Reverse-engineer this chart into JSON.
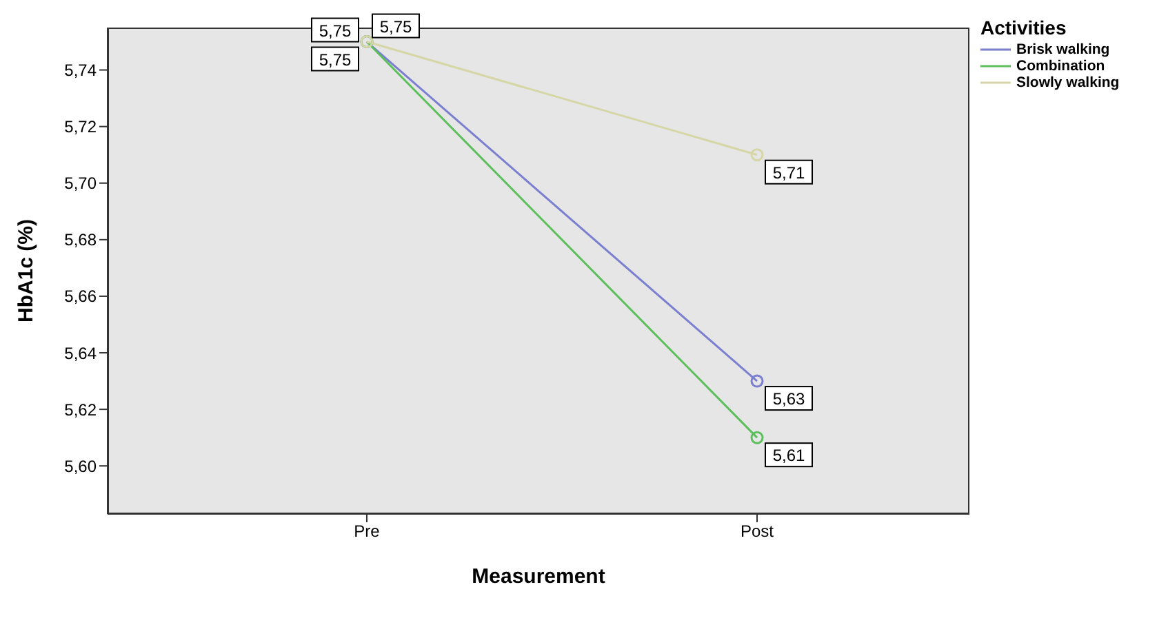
{
  "chart_data": {
    "type": "line",
    "xlabel": "Measurement",
    "ylabel": "HbA1c (%)",
    "legend_title": "Activities",
    "categories": [
      "Pre",
      "Post"
    ],
    "series": [
      {
        "name": "Brisk walking",
        "color": "#7b7fd0",
        "values": [
          5.75,
          5.63
        ],
        "value_labels": [
          "5,75",
          "5,63"
        ]
      },
      {
        "name": "Combination",
        "color": "#5cbf5c",
        "values": [
          5.75,
          5.61
        ],
        "value_labels": [
          "5,75",
          "5,61"
        ]
      },
      {
        "name": "Slowly walking",
        "color": "#d6d6a6",
        "values": [
          5.75,
          5.71
        ],
        "value_labels": [
          "5,75",
          "5,71"
        ]
      }
    ],
    "ylim": [
      5.583,
      5.755
    ],
    "yticks": [
      {
        "value": 5.6,
        "label": "5,60"
      },
      {
        "value": 5.62,
        "label": "5,62"
      },
      {
        "value": 5.64,
        "label": "5,64"
      },
      {
        "value": 5.66,
        "label": "5,66"
      },
      {
        "value": 5.68,
        "label": "5,68"
      },
      {
        "value": 5.7,
        "label": "5,70"
      },
      {
        "value": 5.72,
        "label": "5,72"
      },
      {
        "value": 5.74,
        "label": "5,74"
      }
    ],
    "grid": false,
    "legend": "top right",
    "marker": "circle",
    "line_style": "solid"
  }
}
